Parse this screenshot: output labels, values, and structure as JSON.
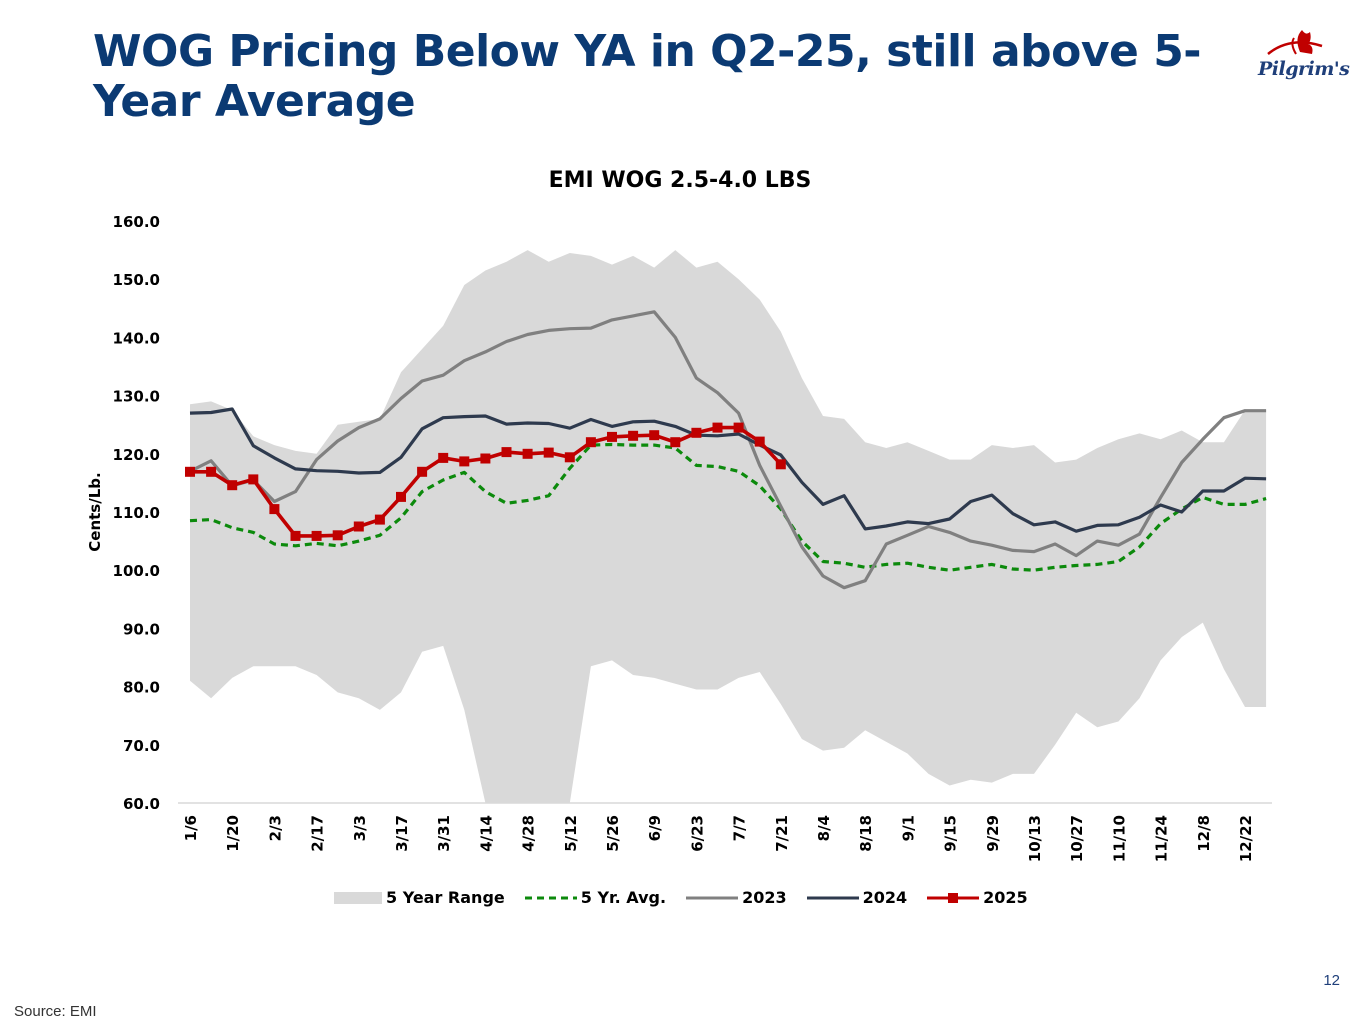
{
  "slide": {
    "title": "WOG Pricing Below YA in Q2-25, still above 5-Year Average",
    "logo_text": "Pilgrim's",
    "page_number": "12",
    "source": "Source: EMI"
  },
  "colors": {
    "title": "#0b3a73",
    "range_fill": "#d9d9d9",
    "avg": "#0c8a0c",
    "y2023": "#808080",
    "y2024": "#2e3a4e",
    "y2025": "#c00000"
  },
  "chart_data": {
    "type": "line",
    "title": "EMI WOG 2.5-4.0 LBS",
    "ylabel": "Cents/Lb.",
    "xlabel": "",
    "ylim": [
      60,
      160
    ],
    "y_ticks": [
      "60.0",
      "70.0",
      "80.0",
      "90.0",
      "100.0",
      "110.0",
      "120.0",
      "130.0",
      "140.0",
      "150.0",
      "160.0"
    ],
    "x_ticks": [
      "1/6",
      "1/20",
      "2/3",
      "2/17",
      "3/3",
      "3/17",
      "3/31",
      "4/14",
      "4/28",
      "5/12",
      "5/26",
      "6/9",
      "6/23",
      "7/7",
      "7/21",
      "8/4",
      "8/18",
      "9/1",
      "9/15",
      "9/29",
      "10/13",
      "10/27",
      "11/10",
      "11/24",
      "12/8",
      "12/22"
    ],
    "legend": [
      "5 Year Range",
      "5 Yr. Avg.",
      "2023",
      "2024",
      "2025"
    ],
    "legend_position": "bottom",
    "range_low": [
      81,
      78,
      81.5,
      83.5,
      83.5,
      83.5,
      82,
      79,
      78,
      76,
      79,
      86,
      87,
      76,
      58,
      58,
      58,
      58,
      58,
      83.5,
      84.5,
      82,
      81.5,
      80.5,
      79.5,
      79.5,
      81.5,
      82.5,
      77,
      71,
      69,
      69.5,
      72.5,
      70.5,
      68.5,
      65,
      63,
      64,
      63.5,
      65,
      65,
      70,
      75.5,
      73,
      74,
      78,
      84.5,
      88.5,
      91,
      83,
      76.5,
      76.5
    ],
    "range_high": [
      128.5,
      129,
      127.5,
      123,
      121.5,
      120.5,
      120,
      125,
      125.5,
      126,
      134,
      138,
      142,
      149,
      151.5,
      153,
      155,
      153,
      154.5,
      154,
      152.5,
      154,
      152,
      155,
      152,
      153,
      150,
      146.5,
      141,
      133,
      126.5,
      126,
      122,
      121,
      122,
      120.5,
      119,
      119,
      121.5,
      121,
      121.5,
      118.5,
      119,
      121,
      122.5,
      123.5,
      122.5,
      124,
      122,
      122,
      127.5,
      127.5
    ],
    "series": [
      {
        "name": "5 Yr. Avg.",
        "values": [
          108.5,
          108.7,
          107.3,
          106.5,
          104.5,
          104.2,
          104.6,
          104.2,
          105,
          106,
          109,
          113.5,
          115.5,
          116.8,
          113.5,
          111.5,
          112,
          112.8,
          117.5,
          121.5,
          121.6,
          121.5,
          121.5,
          121,
          118,
          117.8,
          117,
          114.5,
          110.5,
          105,
          101.5,
          101.2,
          100.5,
          101,
          101.2,
          100.5,
          100,
          100.5,
          101,
          100.2,
          100,
          100.5,
          100.8,
          101,
          101.5,
          104,
          108,
          110.5,
          112.5,
          111.3,
          111.3,
          112.3
        ]
      },
      {
        "name": "2023",
        "values": [
          117,
          118.8,
          114.5,
          115.5,
          111.8,
          113.5,
          119,
          122.2,
          124.5,
          126,
          129.5,
          132.5,
          133.5,
          136,
          137.5,
          139.3,
          140.5,
          141.2,
          141.5,
          141.6,
          143,
          143.7,
          144.4,
          140,
          133,
          130.5,
          127,
          118,
          111,
          104,
          99,
          97,
          98.2,
          104.5,
          106,
          107.5,
          106.5,
          105,
          104.3,
          103.4,
          103.2,
          104.5,
          102.5,
          105,
          104.3,
          106.2,
          112.5,
          118.5,
          122.5,
          126.2,
          127.4,
          127.4
        ]
      },
      {
        "name": "2024",
        "values": [
          127,
          127.1,
          127.7,
          121.4,
          119.3,
          117.4,
          117.1,
          117,
          116.7,
          116.8,
          119.4,
          124.3,
          126.2,
          126.4,
          126.5,
          125.1,
          125.3,
          125.2,
          124.4,
          125.9,
          124.7,
          125.5,
          125.6,
          124.7,
          123.2,
          123.1,
          123.4,
          121.5,
          119.8,
          115.1,
          111.3,
          112.8,
          107.1,
          107.6,
          108.3,
          108,
          108.8,
          111.8,
          112.9,
          109.7,
          107.8,
          108.3,
          106.7,
          107.7,
          107.8,
          109.1,
          111.2,
          110,
          113.6,
          113.6,
          115.8,
          115.7
        ]
      },
      {
        "name": "2025",
        "values": [
          116.9,
          116.9,
          114.6,
          115.6,
          110.5,
          105.9,
          105.9,
          106,
          107.5,
          108.7,
          112.6,
          116.9,
          119.3,
          118.7,
          119.2,
          120.3,
          120,
          120.2,
          119.4,
          122,
          122.9,
          123.1,
          123.2,
          122,
          123.6,
          124.5,
          124.5,
          122.1,
          118.2
        ]
      }
    ]
  }
}
